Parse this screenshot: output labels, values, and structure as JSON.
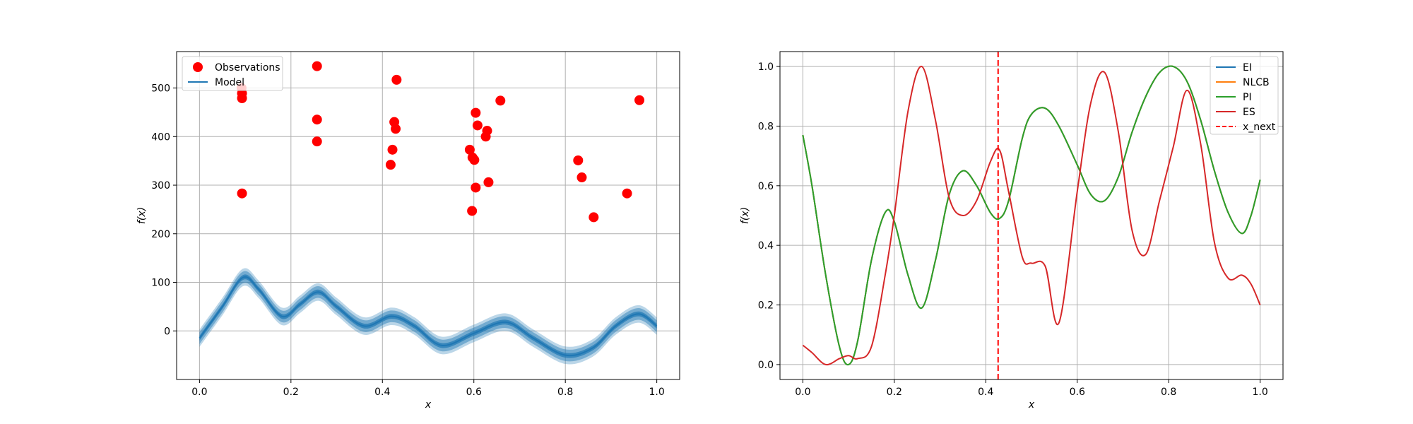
{
  "chart_data": [
    {
      "type": "scatter+band",
      "xlabel": "x",
      "ylabel": "f(x)",
      "xlim": [
        -0.05,
        1.05
      ],
      "ylim": [
        -100,
        575
      ],
      "xticks": [
        0.0,
        0.2,
        0.4,
        0.6,
        0.8,
        1.0
      ],
      "xtick_labels": [
        "0.0",
        "0.2",
        "0.4",
        "0.6",
        "0.8",
        "1.0"
      ],
      "yticks": [
        0,
        100,
        200,
        300,
        400,
        500
      ],
      "ytick_labels": [
        "0",
        "100",
        "200",
        "300",
        "400",
        "500"
      ],
      "grid": true,
      "legend": {
        "placement": "upper-left",
        "entries": [
          {
            "label": "Observations",
            "marker": "circle",
            "color": "#ff0000"
          },
          {
            "label": "Model",
            "marker": "line",
            "color": "#1f77b4"
          }
        ]
      },
      "observations": {
        "name": "Observations",
        "color": "#ff0000",
        "points": [
          [
            0.092,
            500
          ],
          [
            0.093,
            489
          ],
          [
            0.093,
            479
          ],
          [
            0.093,
            283
          ],
          [
            0.257,
            545
          ],
          [
            0.257,
            435
          ],
          [
            0.257,
            390
          ],
          [
            0.418,
            342
          ],
          [
            0.422,
            373
          ],
          [
            0.426,
            430
          ],
          [
            0.429,
            416
          ],
          [
            0.431,
            517
          ],
          [
            0.591,
            373
          ],
          [
            0.596,
            247
          ],
          [
            0.597,
            357
          ],
          [
            0.601,
            352
          ],
          [
            0.604,
            295
          ],
          [
            0.604,
            449
          ],
          [
            0.608,
            423
          ],
          [
            0.626,
            400
          ],
          [
            0.629,
            412
          ],
          [
            0.632,
            306
          ],
          [
            0.658,
            474
          ],
          [
            0.828,
            351
          ],
          [
            0.836,
            316
          ],
          [
            0.862,
            234
          ],
          [
            0.935,
            283
          ],
          [
            0.962,
            475
          ]
        ]
      },
      "model": {
        "name": "Model",
        "color": "#1f77b4",
        "band_color": "#1f77b4",
        "x": [
          0.0,
          0.05,
          0.095,
          0.13,
          0.18,
          0.22,
          0.26,
          0.3,
          0.36,
          0.42,
          0.47,
          0.53,
          0.6,
          0.67,
          0.73,
          0.8,
          0.86,
          0.91,
          0.96,
          1.0
        ],
        "mean": [
          -15,
          50,
          110,
          85,
          30,
          55,
          80,
          50,
          10,
          30,
          10,
          -30,
          -5,
          18,
          -15,
          -50,
          -35,
          10,
          35,
          10
        ],
        "band_half_widths": [
          5,
          12,
          18
        ]
      }
    },
    {
      "type": "line",
      "xlabel": "x",
      "ylabel": "f(x)",
      "xlim": [
        -0.05,
        1.05
      ],
      "ylim": [
        -0.05,
        1.05
      ],
      "xticks": [
        0.0,
        0.2,
        0.4,
        0.6,
        0.8,
        1.0
      ],
      "xtick_labels": [
        "0.0",
        "0.2",
        "0.4",
        "0.6",
        "0.8",
        "1.0"
      ],
      "yticks": [
        0.0,
        0.2,
        0.4,
        0.6,
        0.8,
        1.0
      ],
      "ytick_labels": [
        "0.0",
        "0.2",
        "0.4",
        "0.6",
        "0.8",
        "1.0"
      ],
      "grid": true,
      "legend": {
        "placement": "upper-right",
        "entries": [
          {
            "label": "EI",
            "style": "solid",
            "color": "#1f77b4"
          },
          {
            "label": "NLCB",
            "style": "solid",
            "color": "#ff7f0e"
          },
          {
            "label": "PI",
            "style": "solid",
            "color": "#2ca02c"
          },
          {
            "label": "ES",
            "style": "solid",
            "color": "#d62728"
          },
          {
            "label": "x_next",
            "style": "dashed",
            "color": "#ff0000"
          }
        ]
      },
      "x": [
        0.0,
        0.02,
        0.05,
        0.08,
        0.1,
        0.12,
        0.15,
        0.18,
        0.2,
        0.23,
        0.26,
        0.29,
        0.32,
        0.35,
        0.38,
        0.41,
        0.43,
        0.45,
        0.48,
        0.5,
        0.53,
        0.56,
        0.6,
        0.63,
        0.66,
        0.69,
        0.72,
        0.75,
        0.78,
        0.81,
        0.84,
        0.87,
        0.9,
        0.93,
        0.96,
        0.98,
        1.0
      ],
      "series": [
        {
          "name": "EI",
          "color": "#1f77b4",
          "values": [
            0.77,
            0.6,
            0.3,
            0.06,
            0.0,
            0.08,
            0.35,
            0.51,
            0.48,
            0.3,
            0.19,
            0.35,
            0.57,
            0.65,
            0.6,
            0.51,
            0.49,
            0.55,
            0.76,
            0.84,
            0.86,
            0.8,
            0.67,
            0.57,
            0.55,
            0.63,
            0.78,
            0.9,
            0.98,
            1.0,
            0.95,
            0.82,
            0.65,
            0.51,
            0.44,
            0.5,
            0.62
          ]
        },
        {
          "name": "NLCB",
          "color": "#ff7f0e",
          "values": [
            0.77,
            0.6,
            0.3,
            0.06,
            0.0,
            0.08,
            0.35,
            0.51,
            0.48,
            0.3,
            0.19,
            0.35,
            0.57,
            0.65,
            0.6,
            0.51,
            0.49,
            0.55,
            0.76,
            0.84,
            0.86,
            0.8,
            0.67,
            0.57,
            0.55,
            0.63,
            0.78,
            0.9,
            0.98,
            1.0,
            0.95,
            0.82,
            0.65,
            0.51,
            0.44,
            0.5,
            0.62
          ]
        },
        {
          "name": "PI",
          "color": "#2ca02c",
          "values": [
            0.77,
            0.6,
            0.3,
            0.06,
            0.0,
            0.08,
            0.35,
            0.51,
            0.48,
            0.3,
            0.19,
            0.35,
            0.57,
            0.65,
            0.6,
            0.51,
            0.49,
            0.55,
            0.76,
            0.84,
            0.86,
            0.8,
            0.67,
            0.57,
            0.55,
            0.63,
            0.78,
            0.9,
            0.98,
            1.0,
            0.95,
            0.82,
            0.65,
            0.51,
            0.44,
            0.5,
            0.62
          ]
        },
        {
          "name": "ES",
          "color": "#d62728",
          "values": [
            0.065,
            0.04,
            0.0,
            0.02,
            0.03,
            0.02,
            0.06,
            0.3,
            0.5,
            0.85,
            1.0,
            0.82,
            0.56,
            0.5,
            0.55,
            0.68,
            0.72,
            0.58,
            0.36,
            0.34,
            0.33,
            0.14,
            0.58,
            0.88,
            0.98,
            0.78,
            0.45,
            0.37,
            0.55,
            0.73,
            0.92,
            0.74,
            0.41,
            0.29,
            0.3,
            0.27,
            0.2
          ]
        }
      ],
      "x_next": 0.427
    }
  ]
}
